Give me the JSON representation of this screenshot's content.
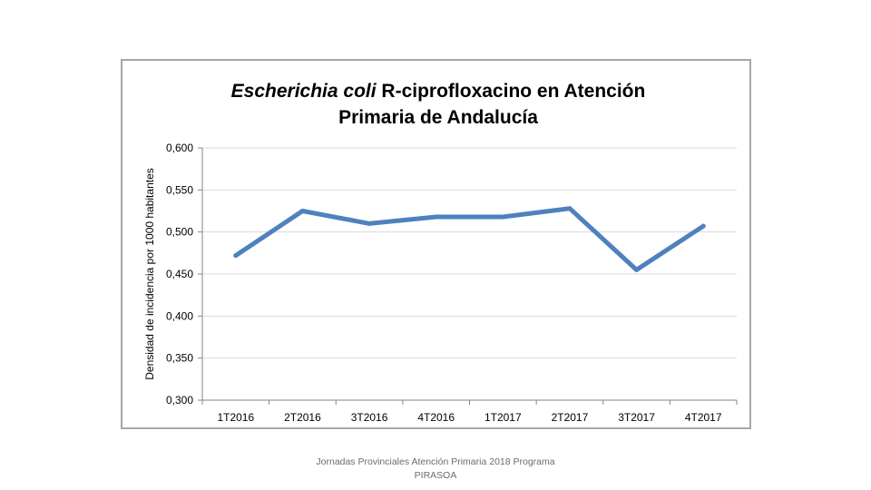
{
  "chart_data": {
    "type": "line",
    "title_italic": "Escherichia coli",
    "title_rest": " R-ciprofloxacino en Atención",
    "title_line2": "Primaria de Andalucía",
    "xlabel": "",
    "ylabel": "Densidad de incidencia por 1000 habitantes",
    "categories": [
      "1T2016",
      "2T2016",
      "3T2016",
      "4T2016",
      "1T2017",
      "2T2017",
      "3T2017",
      "4T2017"
    ],
    "series": [
      {
        "name": "E. coli R-ciprofloxacino",
        "values": [
          0.472,
          0.525,
          0.51,
          0.518,
          0.518,
          0.528,
          0.455,
          0.507
        ],
        "color": "#4f81bd"
      }
    ],
    "ylim": [
      0.3,
      0.6
    ],
    "yticks": [
      "0,300",
      "0,350",
      "0,400",
      "0,450",
      "0,500",
      "0,550",
      "0,600"
    ],
    "grid": true,
    "legend": "none"
  },
  "footer": {
    "line1": "Jornadas Provinciales Atención Primaria 2018  Programa",
    "line2": "PIRASOA"
  }
}
